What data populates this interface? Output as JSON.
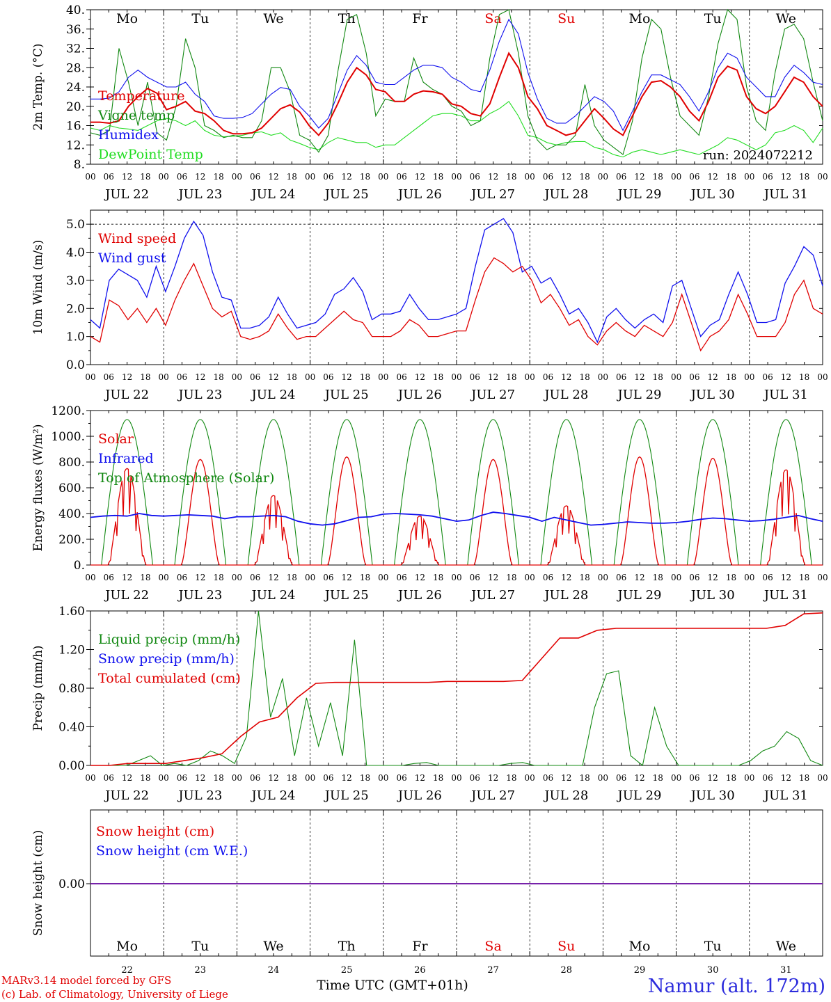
{
  "chart_data": [
    {
      "type": "line",
      "ylabel": "2m Temp. (°C)",
      "ylim": [
        8,
        40
      ],
      "yticks": [
        "8.",
        "12.",
        "16.",
        "20.",
        "24.",
        "28.",
        "32.",
        "36.",
        "40."
      ],
      "annotation": "run: 2024072212",
      "legend": [
        "Temperature",
        "Vigne temp",
        "Humidex",
        "DewPoint Temp"
      ],
      "series": [
        {
          "name": "Temperature",
          "color": "#e00000",
          "values": [
            16.7,
            16.7,
            16.5,
            17,
            20,
            22,
            23.7,
            22.7,
            19.3,
            20,
            21,
            19,
            18.5,
            17,
            15,
            14.3,
            14.3,
            14.5,
            15.5,
            17.5,
            19.5,
            20.3,
            18.8,
            16,
            14,
            16.5,
            20.5,
            25,
            28,
            26.5,
            23.5,
            23,
            21,
            21,
            22.5,
            23.2,
            23,
            22.5,
            20.5,
            20,
            18.5,
            18,
            20.5,
            26,
            31,
            28,
            22,
            19.5,
            16,
            15,
            14,
            14.5,
            17,
            19.5,
            17.5,
            15.3,
            14,
            18,
            22,
            25,
            25.3,
            24,
            22,
            19,
            17,
            21,
            26,
            28.3,
            27.5,
            22,
            19.5,
            18.5,
            20,
            23,
            26,
            25,
            22,
            20
          ]
        },
        {
          "name": "Humidex",
          "color": "#1010ee",
          "values": [
            21.5,
            21.5,
            21.7,
            23,
            26,
            27.5,
            26,
            25,
            24,
            24,
            25,
            22.5,
            21,
            18,
            17.5,
            17.5,
            17.7,
            18.5,
            20.5,
            22.5,
            23.9,
            23.5,
            20,
            18,
            15.5,
            17.5,
            22.5,
            27.5,
            30.5,
            28.5,
            25,
            24.5,
            24.5,
            26,
            27.5,
            28.5,
            28.5,
            28,
            26,
            25,
            23.5,
            23,
            27.5,
            33.5,
            38,
            35,
            27,
            21.5,
            17.5,
            16.5,
            16.5,
            18,
            20,
            22,
            21,
            19,
            15,
            19,
            23,
            26.5,
            26.5,
            25.5,
            24.5,
            22,
            19,
            23,
            28,
            31,
            30,
            26,
            24,
            22,
            22,
            26,
            28.5,
            27,
            25,
            24.5
          ]
        },
        {
          "name": "Vigne temp",
          "color": "#118811",
          "values": [
            14.5,
            14,
            15,
            32,
            25,
            16,
            25,
            14.5,
            13,
            20,
            34,
            28,
            16,
            15,
            13.5,
            14,
            13.5,
            13.5,
            17,
            28,
            28,
            23,
            14,
            13,
            10.5,
            14,
            27,
            38,
            39,
            31,
            18,
            21.5,
            21,
            21,
            30,
            25,
            23.5,
            22.5,
            20,
            19,
            16,
            17,
            30,
            39,
            40,
            31,
            18,
            13,
            11,
            12,
            12,
            14,
            24.5,
            16,
            13,
            11.5,
            10,
            17,
            30,
            38,
            36,
            26,
            18,
            16,
            14,
            22,
            33,
            40,
            38,
            24,
            17,
            15,
            27,
            36,
            37,
            34,
            25,
            17
          ]
        },
        {
          "name": "DewPoint Temp",
          "color": "#22dd22",
          "values": [
            15.5,
            15,
            16,
            15.5,
            15.3,
            15,
            16,
            17,
            17.5,
            17,
            16,
            17,
            15,
            14,
            13.7,
            13.8,
            14,
            14.5,
            14.7,
            14,
            14.5,
            13,
            12.3,
            11.5,
            11,
            12.5,
            13.5,
            13,
            12.5,
            12.5,
            11.5,
            12,
            12,
            13.5,
            15,
            16.5,
            18,
            18.5,
            18.5,
            18,
            17,
            17,
            18.5,
            19.5,
            21,
            18,
            14,
            13.5,
            12.5,
            12,
            12.5,
            12.7,
            12.7,
            11.5,
            11,
            10,
            9.5,
            10.5,
            11,
            10.5,
            10,
            10.5,
            11,
            10.5,
            10,
            11,
            12,
            13.5,
            13,
            12,
            11,
            12,
            14.5,
            15,
            16,
            15,
            12.5,
            15.5
          ]
        }
      ]
    },
    {
      "type": "line",
      "ylabel": "10m Wind (m/s)",
      "ylim": [
        0,
        5.5
      ],
      "yticks": [
        "0.0",
        "1.0",
        "2.0",
        "3.0",
        "4.0",
        "5.0"
      ],
      "legend": [
        "Wind speed",
        "Wind gust"
      ],
      "series": [
        {
          "name": "Wind speed",
          "color": "#e00000",
          "values": [
            1.0,
            0.8,
            2.3,
            2.1,
            1.6,
            2.0,
            1.5,
            2.0,
            1.4,
            2.3,
            3.0,
            3.6,
            2.8,
            2.0,
            1.7,
            1.9,
            1.0,
            0.9,
            1.0,
            1.2,
            1.8,
            1.3,
            0.9,
            1.0,
            1.0,
            1.3,
            1.6,
            1.9,
            1.6,
            1.5,
            1.0,
            1.0,
            1.0,
            1.2,
            1.6,
            1.4,
            1.0,
            1.0,
            1.1,
            1.2,
            1.2,
            2.3,
            3.3,
            3.8,
            3.6,
            3.3,
            3.5,
            3.0,
            2.2,
            2.5,
            2.0,
            1.4,
            1.6,
            1.0,
            0.7,
            1.2,
            1.5,
            1.2,
            1.0,
            1.4,
            1.2,
            1.0,
            1.5,
            2.5,
            1.5,
            0.5,
            1.0,
            1.2,
            1.6,
            2.5,
            1.8,
            1.0,
            1.0,
            1.0,
            1.5,
            2.5,
            3.0,
            2.0,
            1.8
          ]
        },
        {
          "name": "Wind gust",
          "color": "#1010ee",
          "values": [
            1.6,
            1.3,
            3.0,
            3.4,
            3.2,
            3.0,
            2.4,
            3.5,
            2.6,
            3.5,
            4.5,
            5.1,
            4.6,
            3.3,
            2.4,
            2.3,
            1.3,
            1.3,
            1.4,
            1.7,
            2.4,
            1.8,
            1.3,
            1.4,
            1.5,
            1.8,
            2.5,
            2.7,
            3.1,
            2.6,
            1.6,
            1.8,
            1.8,
            1.9,
            2.5,
            2.0,
            1.6,
            1.6,
            1.7,
            1.8,
            2.0,
            3.5,
            4.8,
            5.0,
            5.2,
            4.7,
            3.3,
            3.5,
            2.9,
            3.1,
            2.5,
            1.8,
            2.0,
            1.5,
            0.8,
            1.7,
            2.0,
            1.6,
            1.3,
            1.6,
            1.8,
            1.5,
            2.8,
            3.0,
            2.0,
            1.0,
            1.4,
            1.6,
            2.5,
            3.3,
            2.5,
            1.5,
            1.5,
            1.6,
            2.9,
            3.5,
            4.2,
            3.9,
            2.8
          ]
        }
      ]
    },
    {
      "type": "line",
      "ylabel": "Energy fluxes (W/m²)",
      "ylim": [
        0,
        1200
      ],
      "yticks": [
        "0.",
        "200.",
        "400.",
        "600.",
        "800.",
        "1000.",
        "1200."
      ],
      "legend": [
        "Solar",
        "Infrared",
        "Top of Atmosphere (Solar)"
      ],
      "solar_peaks_wm2": [
        750,
        820,
        540,
        840,
        380,
        820,
        460,
        840,
        830,
        740
      ],
      "toa_peak_wm2": 1130,
      "series": [
        {
          "name": "Infrared",
          "color": "#1010ee",
          "values": [
            370,
            380,
            385,
            380,
            400,
            385,
            380,
            385,
            390,
            385,
            380,
            360,
            375,
            375,
            380,
            385,
            375,
            340,
            320,
            310,
            320,
            345,
            370,
            375,
            395,
            400,
            395,
            390,
            380,
            360,
            340,
            350,
            385,
            410,
            400,
            385,
            370,
            340,
            370,
            350,
            330,
            310,
            315,
            325,
            335,
            330,
            325,
            325,
            330,
            340,
            355,
            365,
            360,
            350,
            340,
            345,
            355,
            370,
            385,
            360,
            340
          ]
        }
      ]
    },
    {
      "type": "line",
      "ylabel": "Precip (mm/h)",
      "ylim": [
        0,
        1.6
      ],
      "yticks": [
        "0.00",
        "0.40",
        "0.80",
        "1.20",
        "1.60"
      ],
      "legend": [
        "Liquid precip (mm/h)",
        "Snow precip (mm/h)",
        "Total cumulated (cm)"
      ],
      "series": [
        {
          "name": "Liquid precip (mm/h)",
          "color": "#118811",
          "values": [
            0,
            0,
            0,
            0,
            0.05,
            0.1,
            0,
            0.02,
            0,
            0.05,
            0.15,
            0.1,
            0.02,
            0.3,
            1.6,
            0.5,
            0.9,
            0.1,
            0.7,
            0.2,
            0.65,
            0.1,
            1.3,
            0,
            0,
            0,
            0,
            0.02,
            0.03,
            0,
            0,
            0,
            0,
            0,
            0,
            0.02,
            0.03,
            0,
            0,
            0,
            0,
            0,
            0.6,
            0.95,
            0.98,
            0.1,
            0,
            0.6,
            0.2,
            0,
            0,
            0,
            0,
            0,
            0,
            0.05,
            0.15,
            0.2,
            0.35,
            0.28,
            0.05,
            0
          ]
        },
        {
          "name": "Total cumulated (cm)",
          "color": "#e00000",
          "values": [
            0,
            0,
            0.02,
            0.02,
            0.02,
            0.05,
            0.08,
            0.12,
            0.3,
            0.45,
            0.5,
            0.7,
            0.85,
            0.86,
            0.86,
            0.86,
            0.86,
            0.86,
            0.86,
            0.87,
            0.87,
            0.87,
            0.87,
            0.88,
            1.1,
            1.32,
            1.32,
            1.4,
            1.42,
            1.42,
            1.42,
            1.42,
            1.42,
            1.42,
            1.42,
            1.42,
            1.42,
            1.45,
            1.57,
            1.58
          ]
        }
      ]
    },
    {
      "type": "line",
      "ylabel": "Snow height (cm)",
      "yticks": [
        "0.00"
      ],
      "legend": [
        "Snow height (cm)",
        "Snow height (cm W.E.)"
      ],
      "series": [
        {
          "name": "Snow height (cm)",
          "color": "#e00000",
          "values": [
            0,
            0
          ]
        },
        {
          "name": "Snow height (cm W.E.)",
          "color": "#1010ee",
          "values": [
            0,
            0
          ]
        }
      ]
    }
  ],
  "days": [
    {
      "dow": "Mo",
      "date": "JUL 22",
      "num": "22",
      "weekend": false
    },
    {
      "dow": "Tu",
      "date": "JUL 23",
      "num": "23",
      "weekend": false
    },
    {
      "dow": "We",
      "date": "JUL 24",
      "num": "24",
      "weekend": false
    },
    {
      "dow": "Th",
      "date": "JUL 25",
      "num": "25",
      "weekend": false
    },
    {
      "dow": "Fr",
      "date": "JUL 26",
      "num": "26",
      "weekend": false
    },
    {
      "dow": "Sa",
      "date": "JUL 27",
      "num": "27",
      "weekend": true
    },
    {
      "dow": "Su",
      "date": "JUL 28",
      "num": "28",
      "weekend": true
    },
    {
      "dow": "Mo",
      "date": "JUL 29",
      "num": "29",
      "weekend": false
    },
    {
      "dow": "Tu",
      "date": "JUL 30",
      "num": "30",
      "weekend": false
    },
    {
      "dow": "We",
      "date": "JUL 31",
      "num": "31",
      "weekend": false
    }
  ],
  "hour_ticks": [
    "00",
    "06",
    "12",
    "18"
  ],
  "colors": {
    "red": "#e00000",
    "blue": "#1010ee",
    "green": "#118811",
    "lightgreen": "#22dd22",
    "purple": "#7722aa",
    "station": "#2b2bdc"
  },
  "footer": {
    "credit1": "MARv3.14 model forced by GFS",
    "credit2": "(c) Lab. of Climatology, University of Liege",
    "xtitle": "Time UTC (GMT+01h)",
    "station": "Namur (alt. 172m)"
  }
}
